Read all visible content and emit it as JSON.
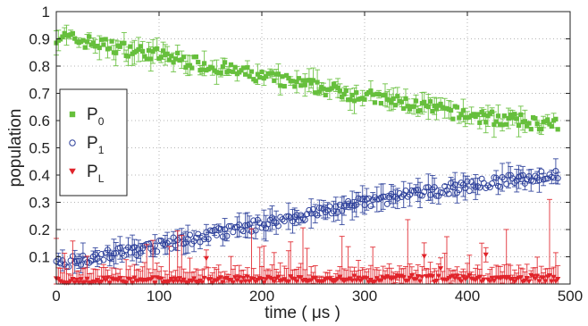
{
  "chart_data": {
    "type": "scatter",
    "title": "",
    "xlabel": "time ( μs )",
    "ylabel": "population",
    "xlim": [
      0,
      500
    ],
    "ylim": [
      0,
      1
    ],
    "xticks": [
      "0",
      "100",
      "200",
      "300",
      "400",
      "500"
    ],
    "yticks": [
      "0.1",
      "0.2",
      "0.3",
      "0.4",
      "0.5",
      "0.6",
      "0.7",
      "0.8",
      "0.9",
      "1"
    ],
    "grid": true,
    "legend_position": "left",
    "x_samples": 245,
    "x_step": 2,
    "series": [
      {
        "name": "P",
        "subscript": "0",
        "marker": "square",
        "color": "#66bf3c",
        "trend_x": [
          0,
          100,
          200,
          300,
          400,
          490
        ],
        "trend_y": [
          0.91,
          0.84,
          0.76,
          0.69,
          0.62,
          0.58
        ],
        "scatter": 0.025,
        "error": 0.035
      },
      {
        "name": "P",
        "subscript": "1",
        "marker": "circle",
        "color": "#2c3f9a",
        "trend_x": [
          0,
          100,
          200,
          300,
          400,
          490
        ],
        "trend_y": [
          0.075,
          0.14,
          0.22,
          0.3,
          0.36,
          0.405
        ],
        "scatter": 0.02,
        "error": 0.04
      },
      {
        "name": "P",
        "subscript": "L",
        "marker": "triangle-down",
        "color": "#e0242b",
        "trend_x": [
          0,
          100,
          200,
          300,
          400,
          490
        ],
        "trend_y": [
          0.01,
          0.012,
          0.015,
          0.018,
          0.02,
          0.02
        ],
        "scatter": 0.012,
        "error": 0.04
      }
    ]
  }
}
